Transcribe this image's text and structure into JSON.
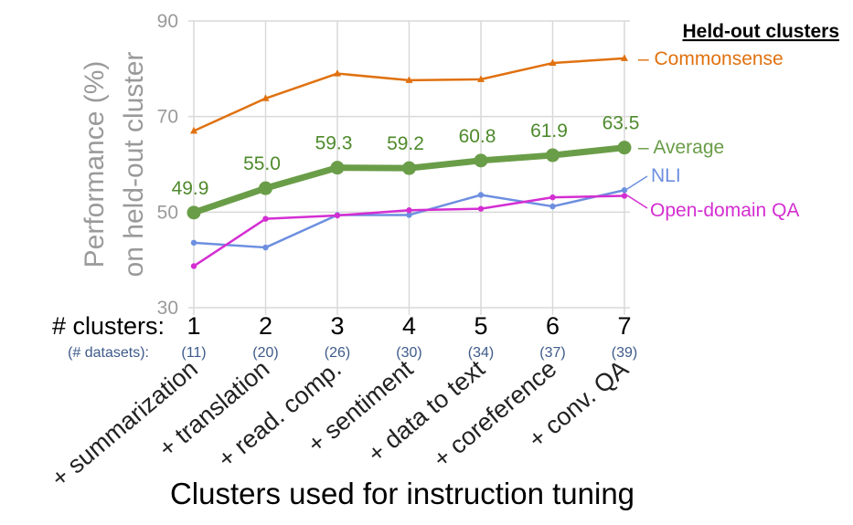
{
  "chart_data": {
    "type": "line",
    "title": "",
    "ylabel_line1": "Performance (%)",
    "ylabel_line2": "on held-out cluster",
    "xlabel": "Clusters used for instruction tuning",
    "ylim": [
      30,
      90
    ],
    "yticks": [
      30,
      50,
      70,
      90
    ],
    "x": [
      1,
      2,
      3,
      4,
      5,
      6,
      7
    ],
    "x_count_title": "# clusters:",
    "x_counts": [
      "1",
      "2",
      "3",
      "4",
      "5",
      "6",
      "7"
    ],
    "x_datasets_title": "(# datasets):",
    "x_datasets": [
      "(11)",
      "(20)",
      "(26)",
      "(30)",
      "(34)",
      "(37)",
      "(39)"
    ],
    "categories": [
      "+ summarization",
      "+ translation",
      "+ read. comp.",
      "+ sentiment",
      "+ data to text",
      "+ coreference",
      "+ conv. QA"
    ],
    "legend_title": "Held-out clusters",
    "series": [
      {
        "name": "Commonsense",
        "label": "– Commonsense",
        "color": "#e0710f",
        "values": [
          67.0,
          73.8,
          79.0,
          77.6,
          77.8,
          81.2,
          82.2
        ],
        "width": 2.5,
        "marker": "triangle"
      },
      {
        "name": "Average",
        "label": "– Average",
        "color": "#6a9d48",
        "values": [
          49.9,
          55.0,
          59.3,
          59.2,
          60.8,
          61.9,
          63.5
        ],
        "width": 7,
        "marker": "circle"
      },
      {
        "name": "NLI",
        "label": "NLI",
        "color": "#6d8fe0",
        "values": [
          43.6,
          42.6,
          49.4,
          49.4,
          53.6,
          51.2,
          54.6
        ],
        "width": 2.5,
        "marker": "dot"
      },
      {
        "name": "Open-domain QA",
        "label": "Open-domain QA",
        "color": "#d42ed2",
        "values": [
          38.7,
          48.6,
          49.3,
          50.4,
          50.7,
          53.1,
          53.4
        ],
        "width": 2.5,
        "marker": "dot"
      }
    ],
    "data_labels": [
      "49.9",
      "55.0",
      "59.3",
      "59.2",
      "60.8",
      "61.9",
      "63.5"
    ],
    "grid": true
  }
}
